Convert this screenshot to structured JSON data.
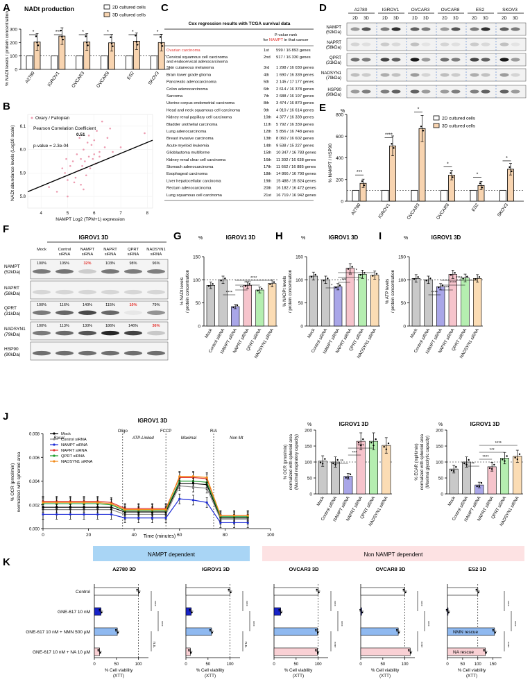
{
  "panel_letters": [
    "A",
    "B",
    "C",
    "D",
    "E",
    "F",
    "G",
    "H",
    "I",
    "J",
    "K"
  ],
  "colors": {
    "c2d": "#ffffff",
    "c3d": "#f8d4b0",
    "mock": "#c9c9c9",
    "ctrl": "#c9c9c9",
    "nampt": "#a9a6e8",
    "naprt": "#f6c4cc",
    "qprt": "#b5eeb0",
    "nadsyn": "#fbdcb4",
    "red": "#e3342f",
    "blue": "#1d2bd6",
    "green": "#1c9c2c",
    "orange": "#f28a18",
    "rescue_blue": "#9bb7ee",
    "rescue_pink": "#f9d0d4",
    "bar_blue_dark": "#1722c8"
  },
  "A": {
    "title": "NADt production",
    "ylabel": "% NADt levels / protein concentration",
    "legend": [
      "2D cultured cells",
      "3D cultured cells"
    ],
    "cells": [
      "A2780",
      "IGROV1",
      "OVCAR3",
      "OVCAR8",
      "ES2",
      "SKOV3"
    ],
    "sig": [
      "*",
      "***",
      "*",
      "*",
      "*",
      "*"
    ],
    "ticks": [
      "0",
      "100",
      "200",
      "300"
    ]
  },
  "B": {
    "legend": "Ovary / Fallopian",
    "pearson": "Pearson Correlation Coefficient 0.51",
    "pval": "p-value = 2.3e-04",
    "xlabel": "NAMPT Log2 (TPM+1) expression",
    "ylabel": "NADt abundance levels (Log10 scale)",
    "xticks": [
      "4",
      "5",
      "6",
      "7",
      "8"
    ],
    "yticks": [
      "5.8",
      "5.9",
      "6.0",
      "6.1"
    ]
  },
  "C": {
    "title": "Cox regression results with TCGA survival data",
    "col_head": "P-value rank for NAMPT in that cancer",
    "rows": [
      [
        "Ovarian carcinoma",
        "1st",
        "599 / 16 893 genes"
      ],
      [
        "Cervical squamous cell carcinoma and endocervical adenocarcinoma",
        "2nd",
        "917 / 16 330 genes"
      ],
      [
        "Skin cutaneous melanoma",
        "3rd",
        "1 298 / 16 030 genes"
      ],
      [
        "Brain lower grade glioma",
        "4th",
        "1 690 / 16 339 genes"
      ],
      [
        "Pancreatic adenocarcinoma",
        "5th",
        "2 145 / 17 177 genes"
      ],
      [
        "Colon adenocarcinoma",
        "6th",
        "2 614 / 16 378 genes"
      ],
      [
        "Sarcoma",
        "7th",
        "2 688 / 16 197 genes"
      ],
      [
        "Uterine corpus endometrial carcinoma",
        "8th",
        "3 474 / 16 870 genes"
      ],
      [
        "Head and neck squamous cell carcinoma",
        "9th",
        "4 010 / 16 614 genes"
      ],
      [
        "Kidney renal papillary cell carcinoma",
        "10th",
        "4 377 / 16 339 genes"
      ],
      [
        "Bladder urothelial carcinoma",
        "11th",
        "5 792 / 16 339 genes"
      ],
      [
        "Lung adenocarcinoma",
        "12th",
        "5 856 / 16 748 genes"
      ],
      [
        "Breast invasive carcinoma",
        "13th",
        "8 060 / 16 602 genes"
      ],
      [
        "Acute myeloid leukemia",
        "14th",
        "9 538 / 15 227 genes"
      ],
      [
        "Glioblastoma multiforme",
        "15th",
        "10 347 / 16 783 genes"
      ],
      [
        "Kidney renal clear cell carcinoma",
        "16th",
        "11 302 / 16 638 genes"
      ],
      [
        "Stomach adenocarcinoma",
        "17th",
        "11 662 / 16 885 genes"
      ],
      [
        "Esophageal carcinoma",
        "18th",
        "14 866 / 16 790 genes"
      ],
      [
        "Liver hepatocellular carcinoma",
        "19th",
        "15 488 / 15 824 genes"
      ],
      [
        "Rectum adenocarcinoma",
        "20th",
        "16 182 / 16 472 genes"
      ],
      [
        "Lung squamous cell carcinoma",
        "21st",
        "16 719 / 16 942 genes"
      ]
    ]
  },
  "D": {
    "cells": [
      "A2780",
      "IGROV1",
      "OVCAR3",
      "OVCAR8",
      "ES2",
      "SKOV3"
    ],
    "lanes": [
      "2D",
      "3D"
    ],
    "proteins": [
      "NAMPT (52kDa)",
      "NAPRT (58kDa)",
      "QPRT (31kDa)",
      "NADSYN1 (79kDa)",
      "HSP90 (90kDa)"
    ]
  },
  "E": {
    "ylabel": "% NAMPT / HSP90",
    "unit": "%",
    "legend": [
      "2D cultured cells",
      "3D cultured cells"
    ],
    "cells": [
      "A2780",
      "IGROV1",
      "OVCAR3",
      "OVCAR8",
      "ES2",
      "SKOV3"
    ],
    "sig": [
      "***",
      "****",
      "*",
      "*",
      "*",
      "*"
    ],
    "ticks": [
      "0",
      "200",
      "400",
      "600",
      "800"
    ]
  },
  "F": {
    "title": "IGROV1 3D",
    "lanes": [
      "Mock",
      "Control siRNA",
      "NAMPT siRNA",
      "NAPRT siRNA",
      "QPRT siRNA",
      "NADSYN1 siRNA"
    ],
    "proteins": [
      "NAMPT (52kDa)",
      "NAPRT (58kDa)",
      "QPRT (31kDa)",
      "NADSYN1 (79kDa)",
      "HSP90 (90kDa)"
    ],
    "quant": {
      "NAMPT": [
        "100%",
        "105%",
        "32%",
        "103%",
        "98%",
        "96%"
      ],
      "QPRT": [
        "100%",
        "116%",
        "140%",
        "115%",
        "10%",
        "79%"
      ],
      "NADSYN1": [
        "100%",
        "113%",
        "130%",
        "186%",
        "146%",
        "36%"
      ]
    }
  },
  "G": {
    "title": "IGROV1 3D",
    "unit": "%",
    "ylabel": "% NADt levels / protein concentration",
    "ticks": [
      "0",
      "50",
      "100",
      "150"
    ]
  },
  "H": {
    "title": "IGROV1 3D",
    "unit": "%",
    "ylabel": "% NADPt levels / protein concentration",
    "ticks": [
      "0",
      "50",
      "100",
      "150"
    ]
  },
  "I": {
    "title": "IGROV1 3D",
    "unit": "%",
    "ylabel": "% ATP levels / protein concentration",
    "ticks": [
      "0",
      "50",
      "100",
      "150"
    ]
  },
  "siRNA_labels": [
    "Mock",
    "Control siRNA",
    "NAMPT siRNA",
    "NAPRT siRNA",
    "QPRT siRNA",
    "NADSYN1 siRNA"
  ],
  "J": {
    "title": "IGROV1 3D",
    "ylabel": "% OCR (pmol/min) normalized with spheroid area",
    "xlabel": "Time (minutes)",
    "phases": [
      "Basal",
      "ATP-Linked",
      "Maximal",
      "Non Mt"
    ],
    "injections": [
      "Oligo",
      "FCCP",
      "R/A"
    ],
    "legend": [
      "Mock",
      "Control siRNA",
      "NAMPT siRNA",
      "NAPRT siRNA",
      "QPRT siRNA",
      "NADSYN1 siRNA"
    ],
    "xticks": [
      "0",
      "20",
      "40",
      "60",
      "80",
      "100"
    ],
    "yticks": [
      "0.000",
      "0.002",
      "0.004",
      "0.006",
      "0.008"
    ]
  },
  "J2": {
    "title": "IGROV1 3D",
    "unit": "%",
    "ylabel": "% OCR (pmol/min) normalized with spheroid area (Maximal respiratory capacity)",
    "ticks": [
      "0",
      "50",
      "100",
      "150",
      "200"
    ]
  },
  "J3": {
    "title": "IGROV1 3D",
    "unit": "%",
    "ylabel": "% ECAR (mpH/min) normalized with spheroid area (Maximal glycolytic capacity)",
    "ticks": [
      "0",
      "50",
      "100",
      "150",
      "200"
    ]
  },
  "K": {
    "header_left": "NAMPT dependent",
    "header_right": "Non NAMPT dependent",
    "conditions": [
      "Control",
      "GNE-617 10 nM",
      "GNE-617 10 nM + NMN 500 µM",
      "GNE-617 10 nM + NA 10 µM"
    ],
    "xlabel": "% Cell viability (XTT)",
    "panels": [
      "A2780 3D",
      "IGROV1 3D",
      "OVCAR3 3D",
      "OVCAR8 3D",
      "ES2 3D"
    ],
    "nmn_rescue": "NMN rescue",
    "na_rescue": "NA rescue",
    "ns": "n.s.",
    "sig4": "****"
  },
  "chart_data": [
    {
      "id": "A",
      "type": "bar",
      "title": "NADt production",
      "categories": [
        "A2780",
        "IGROV1",
        "OVCAR3",
        "OVCAR8",
        "ES2",
        "SKOV3"
      ],
      "series": [
        {
          "name": "2D cultured cells",
          "values": [
            100,
            100,
            100,
            100,
            100,
            100
          ]
        },
        {
          "name": "3D cultured cells",
          "values": [
            205,
            248,
            205,
            198,
            210,
            200
          ]
        }
      ],
      "ylim": [
        0,
        300
      ]
    },
    {
      "id": "B",
      "type": "scatter",
      "xlabel": "NAMPT Log2 (TPM+1) expression",
      "ylabel": "NADt abundance levels (Log10 scale)",
      "xlim": [
        3.5,
        8.2
      ],
      "ylim": [
        5.75,
        6.15
      ],
      "x": [
        4.3,
        4.6,
        4.8,
        4.9,
        5.0,
        5.1,
        5.2,
        5.3,
        5.35,
        5.4,
        5.5,
        5.55,
        5.6,
        5.65,
        5.7,
        5.75,
        5.8,
        5.85,
        5.9,
        5.95,
        6.0,
        6.05,
        6.1,
        6.2,
        6.3,
        6.4,
        6.5,
        6.7,
        7.0,
        7.9,
        5.0,
        5.25,
        5.45,
        5.6,
        5.8,
        6.0,
        6.2,
        4.95,
        5.5,
        6.6
      ],
      "y": [
        5.84,
        5.82,
        5.92,
        5.9,
        5.87,
        5.93,
        5.95,
        5.88,
        5.98,
        5.91,
        5.96,
        5.93,
        6.0,
        5.95,
        5.89,
        6.03,
        5.97,
        5.92,
        6.02,
        5.96,
        6.04,
        5.94,
        6.08,
        5.99,
        6.12,
        6.01,
        6.05,
        5.99,
        6.01,
        6.07,
        5.8,
        5.86,
        6.05,
        5.83,
        6.06,
        5.98,
        5.97,
        5.96,
        5.85,
        6.09
      ],
      "fit": {
        "x": [
          3.5,
          8.2
        ],
        "y": [
          5.82,
          6.04
        ]
      }
    },
    {
      "id": "E",
      "type": "bar",
      "categories": [
        "A2780",
        "IGROV1",
        "OVCAR3",
        "OVCAR8",
        "ES2",
        "SKOV3"
      ],
      "series": [
        {
          "name": "2D cultured cells",
          "values": [
            100,
            100,
            100,
            100,
            100,
            100
          ]
        },
        {
          "name": "3D cultured cells",
          "values": [
            165,
            510,
            670,
            240,
            145,
            295
          ]
        }
      ],
      "ylim": [
        0,
        800
      ]
    },
    {
      "id": "G",
      "type": "bar",
      "categories": [
        "Mock",
        "Control siRNA",
        "NAMPT siRNA",
        "NAPRT siRNA",
        "QPRT siRNA",
        "NADSYN1 siRNA"
      ],
      "values": [
        88,
        100,
        42,
        88,
        78,
        92
      ],
      "ylim": [
        0,
        150
      ]
    },
    {
      "id": "H",
      "type": "bar",
      "categories": [
        "Mock",
        "Control siRNA",
        "NAMPT siRNA",
        "NAPRT siRNA",
        "QPRT siRNA",
        "NADSYN1 siRNA"
      ],
      "values": [
        108,
        100,
        85,
        125,
        112,
        110
      ],
      "ylim": [
        0,
        150
      ]
    },
    {
      "id": "I",
      "type": "bar",
      "categories": [
        "Mock",
        "Control siRNA",
        "NAMPT siRNA",
        "NAPRT siRNA",
        "QPRT siRNA",
        "NADSYN1 siRNA"
      ],
      "values": [
        103,
        100,
        85,
        112,
        104,
        103
      ],
      "ylim": [
        0,
        150
      ]
    },
    {
      "id": "J",
      "type": "line",
      "xlabel": "Time (minutes)",
      "x": [
        0,
        6,
        12,
        18,
        24,
        30,
        36,
        42,
        48,
        54,
        60,
        66,
        72,
        78,
        84,
        90
      ],
      "ylim": [
        0,
        0.008
      ],
      "series": [
        {
          "name": "Mock",
          "values": [
            0.0018,
            0.0018,
            0.0018,
            0.0018,
            0.0018,
            0.0018,
            0.0014,
            0.0014,
            0.0014,
            0.0014,
            0.0038,
            0.0038,
            0.0037,
            0.0009,
            0.0009,
            0.0009
          ]
        },
        {
          "name": "Control siRNA",
          "values": [
            0.0016,
            0.0016,
            0.0016,
            0.0016,
            0.0016,
            0.0016,
            0.0012,
            0.0012,
            0.0012,
            0.0012,
            0.0036,
            0.0035,
            0.0034,
            0.0008,
            0.0008,
            0.0008
          ]
        },
        {
          "name": "NAMPT siRNA",
          "values": [
            0.0012,
            0.0012,
            0.0012,
            0.0012,
            0.0012,
            0.0012,
            0.0009,
            0.0009,
            0.0009,
            0.0009,
            0.0025,
            0.0024,
            0.0022,
            0.0005,
            0.0005,
            0.0005
          ]
        },
        {
          "name": "NAPRT siRNA",
          "values": [
            0.0023,
            0.0023,
            0.0023,
            0.0023,
            0.0023,
            0.0022,
            0.0017,
            0.0017,
            0.0017,
            0.0017,
            0.0043,
            0.0043,
            0.0042,
            0.0011,
            0.0011,
            0.0011
          ]
        },
        {
          "name": "QPRT siRNA",
          "values": [
            0.0021,
            0.0021,
            0.0021,
            0.0021,
            0.0021,
            0.002,
            0.0015,
            0.0015,
            0.0015,
            0.0015,
            0.004,
            0.004,
            0.0039,
            0.001,
            0.001,
            0.001
          ]
        },
        {
          "name": "NADSYN1 siRNA",
          "values": [
            0.0022,
            0.0022,
            0.0022,
            0.0022,
            0.0022,
            0.0021,
            0.0016,
            0.0016,
            0.0016,
            0.0016,
            0.0044,
            0.0044,
            0.0043,
            0.0011,
            0.0011,
            0.0011
          ]
        }
      ]
    },
    {
      "id": "J2",
      "type": "bar",
      "categories": [
        "Mock",
        "Control siRNA",
        "NAMPT siRNA",
        "NAPRT siRNA",
        "QPRT siRNA",
        "NADSYN1 siRNA"
      ],
      "values": [
        103,
        100,
        55,
        165,
        165,
        152
      ],
      "ylim": [
        0,
        200
      ]
    },
    {
      "id": "J3",
      "type": "bar",
      "categories": [
        "Mock",
        "Control siRNA",
        "NAMPT siRNA",
        "NAPRT siRNA",
        "QPRT siRNA",
        "NADSYN1 siRNA"
      ],
      "values": [
        78,
        100,
        28,
        85,
        112,
        118
      ],
      "ylim": [
        0,
        200
      ]
    },
    {
      "id": "K",
      "type": "bar",
      "orientation": "horizontal",
      "categories": [
        "Control",
        "GNE-617 10 nM",
        "GNE-617 10 nM + NMN 500 µM",
        "GNE-617 10 nM + NA 10 µM"
      ],
      "series": [
        {
          "name": "A2780 3D",
          "values": [
            100,
            15,
            52,
            12
          ]
        },
        {
          "name": "IGROV1 3D",
          "values": [
            100,
            12,
            58,
            10
          ]
        },
        {
          "name": "OVCAR3 3D",
          "values": [
            100,
            15,
            98,
            98
          ]
        },
        {
          "name": "OVCAR8 3D",
          "values": [
            100,
            2,
            85,
            112
          ]
        },
        {
          "name": "ES2 3D",
          "values": [
            100,
            2,
            155,
            125
          ]
        }
      ]
    }
  ]
}
